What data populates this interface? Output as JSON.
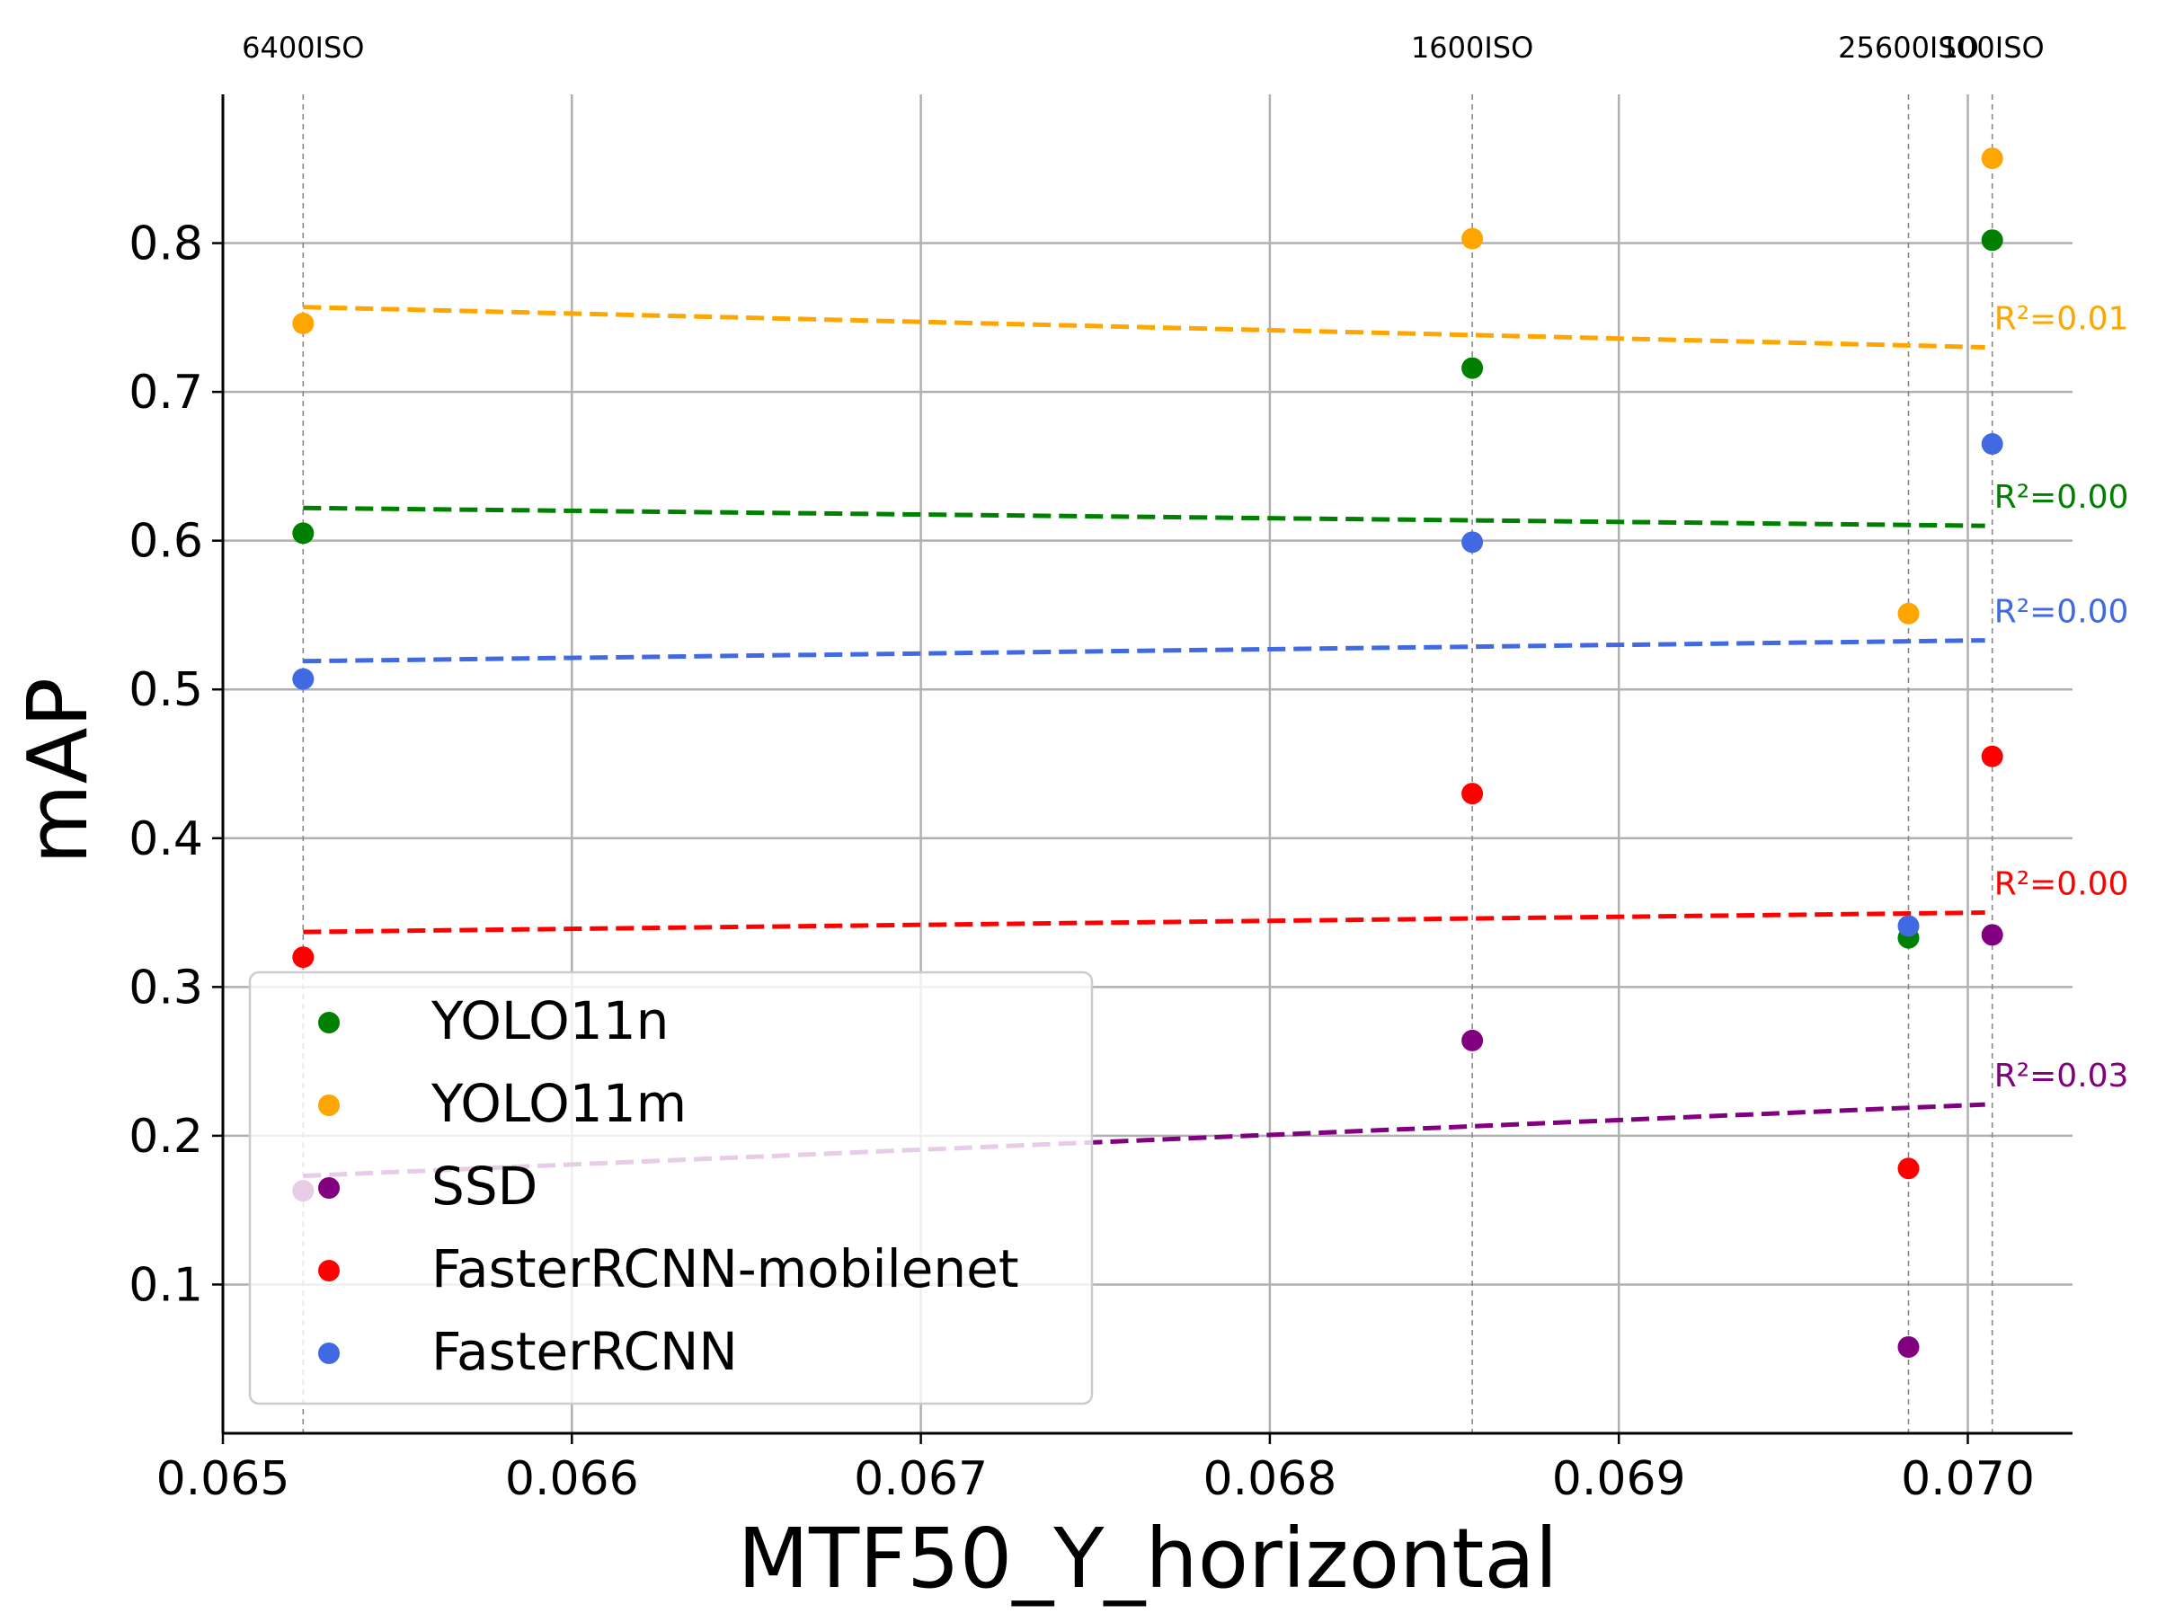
{
  "chart_data": {
    "type": "scatter",
    "title": "",
    "xlabel": "MTF50_Y_horizontal",
    "ylabel": "mAP",
    "xlim": [
      0.065,
      0.0703
    ],
    "ylim": [
      0.0,
      0.9
    ],
    "x_ticks": [
      0.065,
      0.066,
      0.067,
      0.068,
      0.069,
      0.07
    ],
    "x_tick_labels": [
      "0.065",
      "0.066",
      "0.067",
      "0.068",
      "0.069",
      "0.070"
    ],
    "y_ticks": [
      0.1,
      0.2,
      0.3,
      0.4,
      0.5,
      0.6,
      0.7,
      0.8
    ],
    "y_tick_labels": [
      "0.1",
      "0.2",
      "0.3",
      "0.4",
      "0.5",
      "0.6",
      "0.7",
      "0.8"
    ],
    "grid": true,
    "legend_position": "lower-left",
    "iso_markers": [
      {
        "label": "6400ISO",
        "x": 0.06523
      },
      {
        "label": "1600ISO",
        "x": 0.06858
      },
      {
        "label": "25600ISO",
        "x": 0.06983
      },
      {
        "label": "100ISO",
        "x": 0.07007
      }
    ],
    "x": [
      0.06523,
      0.06858,
      0.06983,
      0.07007
    ],
    "series": [
      {
        "name": "YOLO11n",
        "color": "#008000",
        "values": [
          0.605,
          0.716,
          0.333,
          0.802
        ],
        "trend": [
          0.622,
          0.61
        ],
        "r2_label": "R²=0.00"
      },
      {
        "name": "YOLO11m",
        "color": "#FFA500",
        "values": [
          0.746,
          0.803,
          0.551,
          0.857
        ],
        "trend": [
          0.757,
          0.73
        ],
        "r2_label": "R²=0.01"
      },
      {
        "name": "SSD",
        "color": "#800080",
        "values": [
          0.163,
          0.264,
          0.058,
          0.335
        ],
        "trend": [
          0.173,
          0.221
        ],
        "r2_label": "R²=0.03"
      },
      {
        "name": "FasterRCNN-mobilenet",
        "color": "#FF0000",
        "values": [
          0.32,
          0.43,
          0.178,
          0.455
        ],
        "trend": [
          0.337,
          0.35
        ],
        "r2_label": "R²=0.00"
      },
      {
        "name": "FasterRCNN",
        "color": "#4169E1",
        "values": [
          0.507,
          0.599,
          0.341,
          0.665
        ],
        "trend": [
          0.519,
          0.533
        ],
        "r2_label": "R²=0.00"
      }
    ]
  }
}
